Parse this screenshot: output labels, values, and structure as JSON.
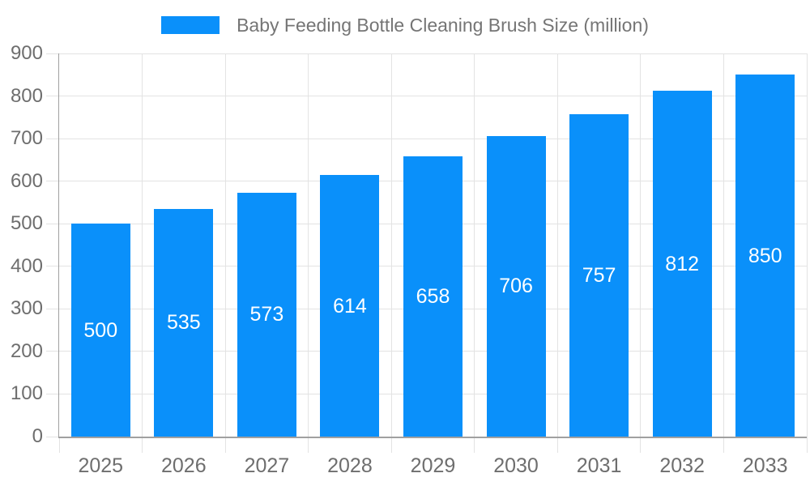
{
  "chart_data": {
    "type": "bar",
    "title": "Baby Feeding Bottle Cleaning Brush Size (million)",
    "categories": [
      "2025",
      "2026",
      "2027",
      "2028",
      "2029",
      "2030",
      "2031",
      "2032",
      "2033"
    ],
    "values": [
      500,
      535,
      573,
      614,
      658,
      706,
      757,
      812,
      850
    ],
    "xlabel": "",
    "ylabel": "",
    "ylim": [
      0,
      900
    ],
    "ytick_step": 100,
    "grid": true,
    "legend_position": "top",
    "value_labels": "inside-center-white",
    "colors": {
      "bar": "#0a90fa",
      "axis_line": "#a0a0a0",
      "grid_line": "#e3e3e3",
      "tick_text": "#6e6e6e",
      "title_text": "#757575",
      "value_label": "#ffffff",
      "background": "#ffffff"
    }
  }
}
